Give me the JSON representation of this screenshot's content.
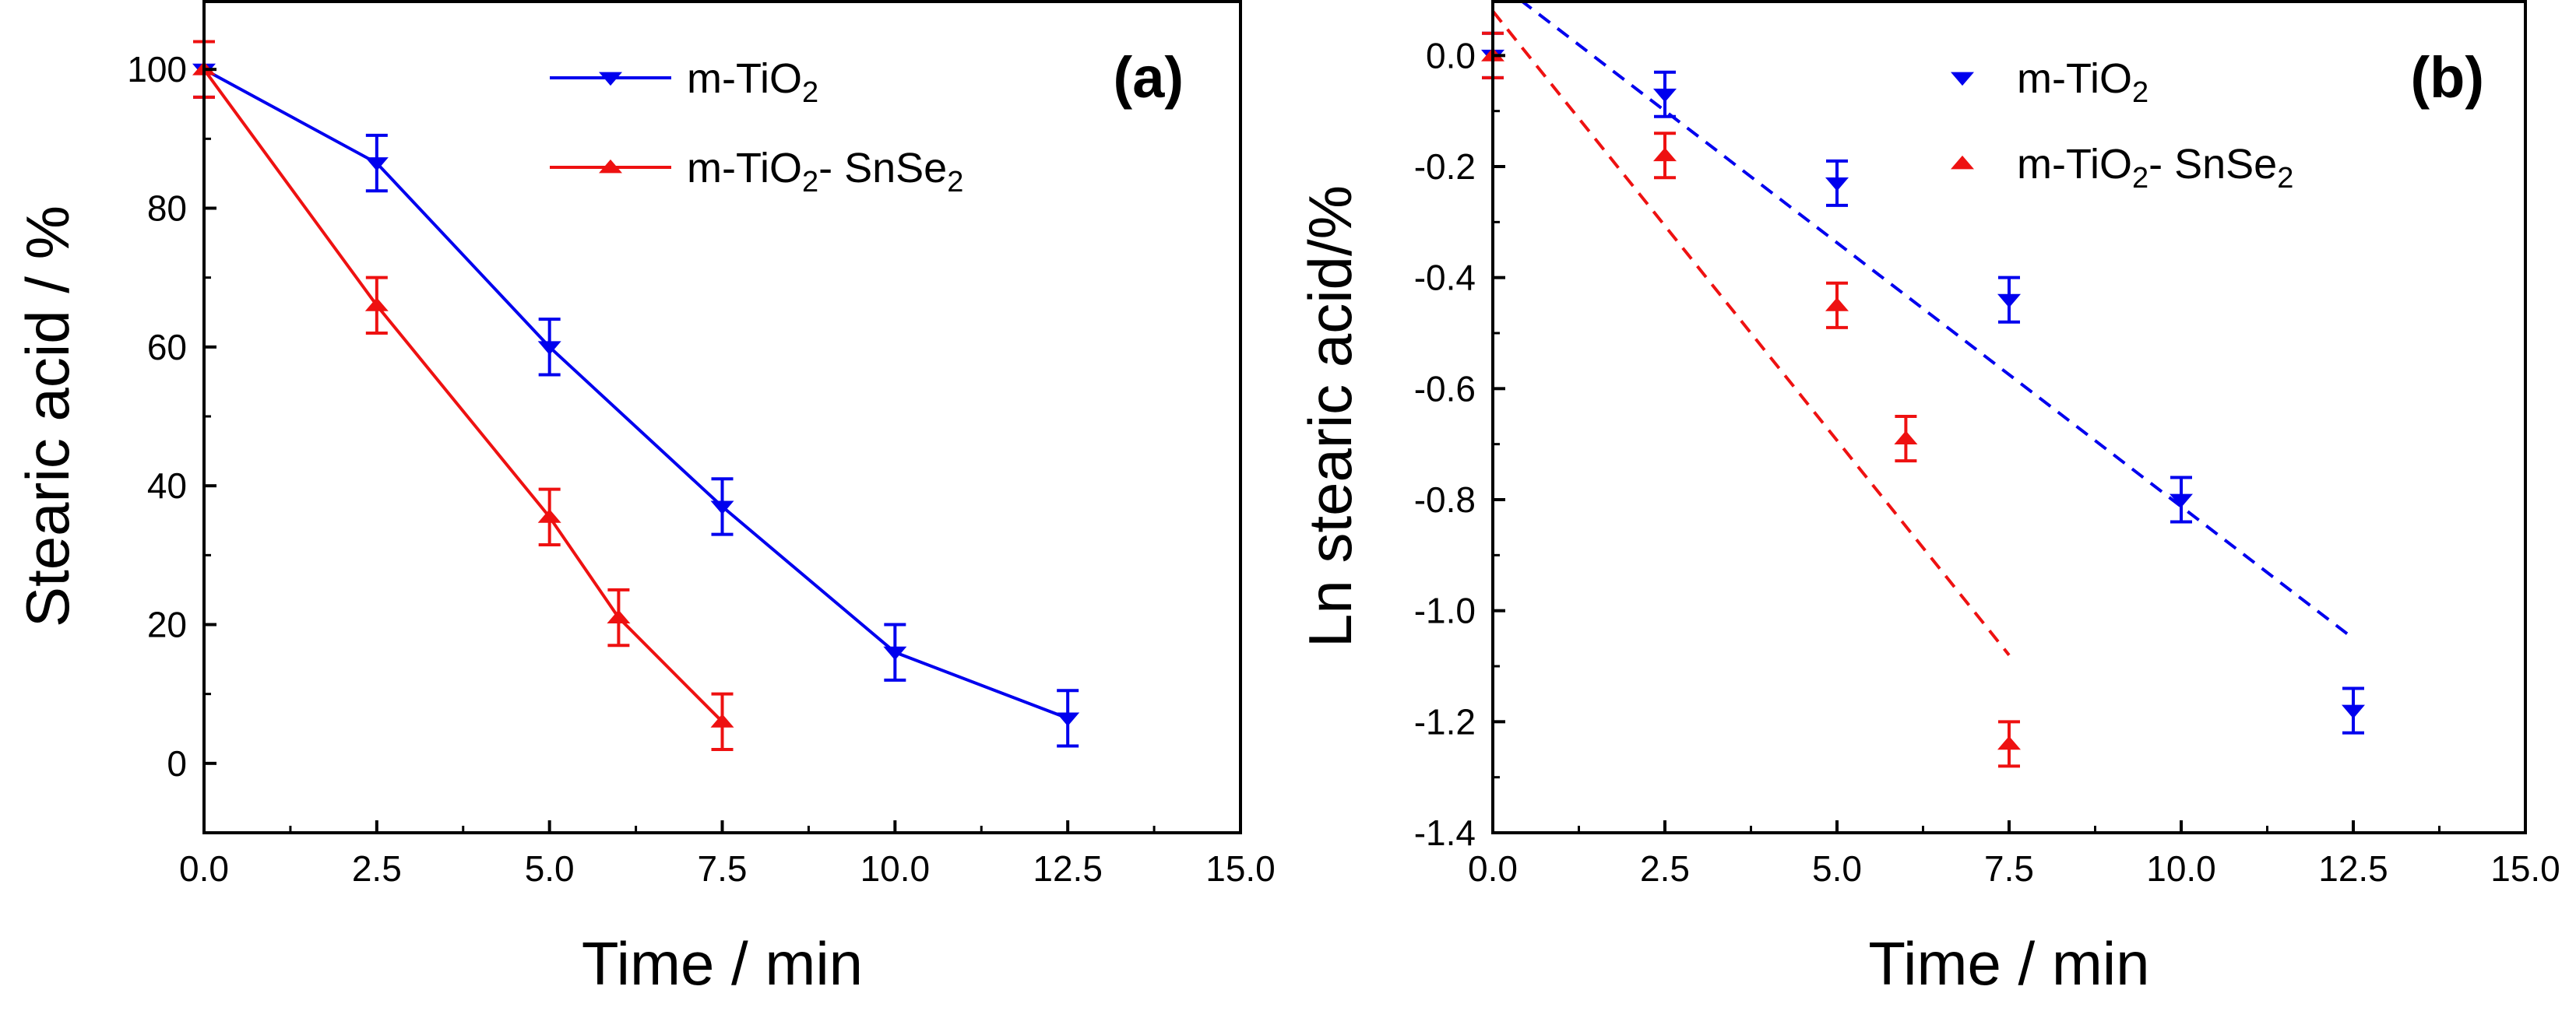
{
  "colors": {
    "blue": "#0000ee",
    "red": "#ee1111",
    "axis": "#000000"
  },
  "chart_data": [
    {
      "type": "line",
      "panel_label": "(a)",
      "xlabel": "Time / min",
      "ylabel": "Stearic acid / %",
      "xlim": [
        0,
        15
      ],
      "ylim": [
        -10,
        110
      ],
      "xticks": [
        "0.0",
        "2.5",
        "5.0",
        "7.5",
        "10.0",
        "12.5",
        "15.0"
      ],
      "xtick_values": [
        0,
        2.5,
        5,
        7.5,
        10,
        12.5,
        15
      ],
      "yticks": [
        "0",
        "20",
        "40",
        "60",
        "80",
        "100"
      ],
      "ytick_values": [
        0,
        20,
        40,
        60,
        80,
        100
      ],
      "grid": false,
      "legend_position": "top-right",
      "series": [
        {
          "name_base": "m-TiO",
          "name_sub": "2",
          "name_rest": "",
          "name_sub2": "",
          "color": "blue",
          "marker": "triangle-down",
          "line": "solid",
          "x": [
            0,
            2.5,
            5,
            7.5,
            10,
            12.5
          ],
          "y": [
            100,
            86.5,
            60,
            37,
            16,
            6.5
          ],
          "err": [
            4,
            4,
            4,
            4,
            4,
            4
          ]
        },
        {
          "name_base": "m-TiO",
          "name_sub": "2",
          "name_rest": "- SnSe",
          "name_sub2": "2",
          "color": "red",
          "marker": "triangle-up",
          "line": "solid",
          "x": [
            0,
            2.5,
            5,
            6,
            7.5
          ],
          "y": [
            100,
            66,
            35.5,
            21,
            6
          ],
          "err": [
            4,
            4,
            4,
            4,
            4
          ]
        }
      ]
    },
    {
      "type": "scatter",
      "panel_label": "(b)",
      "xlabel": "Time / min",
      "ylabel": "Ln stearic acid/%",
      "xlim": [
        0,
        15
      ],
      "ylim": [
        -1.4,
        0.1
      ],
      "xticks": [
        "0.0",
        "2.5",
        "5.0",
        "7.5",
        "10.0",
        "12.5",
        "15.0"
      ],
      "xtick_values": [
        0,
        2.5,
        5,
        7.5,
        10,
        12.5,
        15
      ],
      "yticks": [
        "0.0",
        "-0.2",
        "-0.4",
        "-0.6",
        "-0.8",
        "-1.0",
        "-1.2",
        "-1.4"
      ],
      "ytick_values": [
        0,
        -0.2,
        -0.4,
        -0.6,
        -0.8,
        -1.0,
        -1.2,
        -1.4
      ],
      "grid": false,
      "legend_position": "top-right",
      "series": [
        {
          "name_base": "m-TiO",
          "name_sub": "2",
          "name_rest": "",
          "name_sub2": "",
          "color": "blue",
          "marker": "triangle-down",
          "line": "none",
          "x": [
            0,
            2.5,
            5,
            7.5,
            10,
            12.5
          ],
          "y": [
            0,
            -0.07,
            -0.23,
            -0.44,
            -0.8,
            -1.18
          ],
          "err": [
            0.04,
            0.04,
            0.04,
            0.04,
            0.04,
            0.04
          ],
          "fit": {
            "x": [
              0.4,
              12.5
            ],
            "y": [
              0.1,
              -1.05
            ]
          }
        },
        {
          "name_base": "m-TiO",
          "name_sub": "2",
          "name_rest": "- SnSe",
          "name_sub2": "2",
          "color": "red",
          "marker": "triangle-up",
          "line": "none",
          "x": [
            0,
            2.5,
            5,
            6,
            7.5
          ],
          "y": [
            0,
            -0.18,
            -0.45,
            -0.69,
            -1.24
          ],
          "err": [
            0.04,
            0.04,
            0.04,
            0.04,
            0.04
          ],
          "fit": {
            "x": [
              0,
              7.5
            ],
            "y": [
              0.08,
              -1.08
            ]
          }
        }
      ]
    }
  ]
}
